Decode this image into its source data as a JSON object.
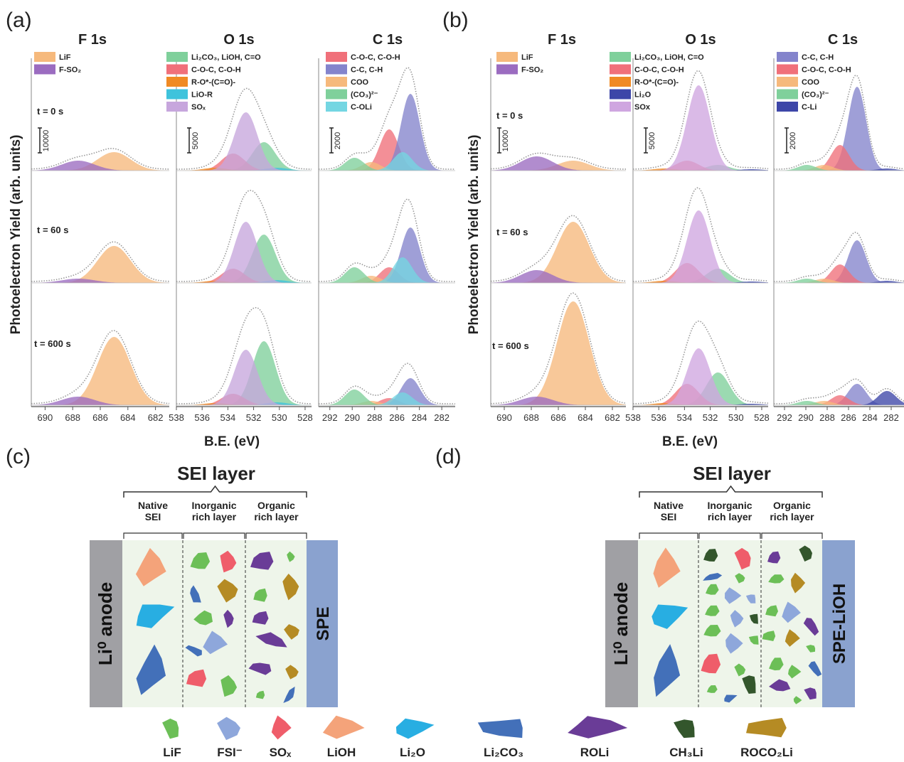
{
  "panel_letters": {
    "a": "(a)",
    "b": "(b)",
    "c": "(c)",
    "d": "(d)"
  },
  "y_label": "Photoelectron Yield (arb. units)",
  "x_label": "B.E. (eV)",
  "times": [
    "t = 0 s",
    "t = 60 s",
    "t = 600 s"
  ],
  "colors": {
    "LiF_xps": "#f6b97c",
    "FSO2": "#9b6cc0",
    "green": "#7fd09b",
    "pink": "#f0707a",
    "orange": "#f08a24",
    "cyan": "#3fc3dc",
    "lilac": "#c7a6dd",
    "blue": "#8484cc",
    "cyan2": "#74d6e2",
    "navy": "#3d46a8",
    "lipurple": "#cfa6e0",
    "envelope": "#999999",
    "panel_bg": "#eef5ea"
  },
  "chart_data": [
    {
      "type": "area",
      "panel": "(a)",
      "title": "F 1s",
      "legend": [
        "LiF",
        "F-SO₂"
      ],
      "x_ticks": [
        690,
        688,
        686,
        684,
        682
      ],
      "scale_bar": "10000",
      "xlim": [
        691,
        681
      ],
      "series": [
        {
          "name": "LiF",
          "center": 685.0,
          "amplitudes": [
            26,
            52,
            96
          ]
        },
        {
          "name": "F-SO₂",
          "center": 687.6,
          "amplitudes": [
            14,
            6,
            12
          ]
        }
      ]
    },
    {
      "type": "area",
      "panel": "(a)",
      "title": "O 1s",
      "legend": [
        "Li₂CO₃, LiOH, C=O",
        "C-O-C, C-O-H",
        "R-O*-(C=O)-",
        "LiO-R",
        "SOₓ"
      ],
      "x_ticks": [
        538,
        536,
        534,
        532,
        530,
        528
      ],
      "scale_bar": "5000",
      "xlim": [
        538,
        527.5
      ],
      "series": [
        {
          "name": "Li₂CO₃, LiOH, C=O",
          "center": 531.2,
          "amplitudes": [
            40,
            68,
            90
          ]
        },
        {
          "name": "C-O-C, C-O-H",
          "center": 533.6,
          "amplitudes": [
            24,
            20,
            16
          ]
        },
        {
          "name": "R-O*-(C=O)-",
          "center": 535.0,
          "amplitudes": [
            4,
            3,
            3
          ]
        },
        {
          "name": "LiO-R",
          "center": 530.2,
          "amplitudes": [
            4,
            4,
            4
          ]
        },
        {
          "name": "SOₓ",
          "center": 532.6,
          "amplitudes": [
            82,
            86,
            78
          ]
        }
      ]
    },
    {
      "type": "area",
      "panel": "(a)",
      "title": "C 1s",
      "legend": [
        "C-O-C, C-O-H",
        "C-C, C-H",
        "COO",
        "(CO₃)²⁻",
        "C-OLi"
      ],
      "x_ticks": [
        292,
        290,
        288,
        286,
        284,
        282
      ],
      "scale_bar": "2000",
      "xlim": [
        293,
        280.8
      ],
      "series": [
        {
          "name": "C-O-C, C-O-H",
          "center": 286.7,
          "amplitudes": [
            58,
            22,
            10
          ]
        },
        {
          "name": "C-C, C-H",
          "center": 284.8,
          "amplitudes": [
            108,
            78,
            38
          ]
        },
        {
          "name": "COO",
          "center": 288.3,
          "amplitudes": [
            12,
            10,
            6
          ]
        },
        {
          "name": "(CO₃)²⁻",
          "center": 289.8,
          "amplitudes": [
            18,
            22,
            22
          ]
        },
        {
          "name": "C-OLi",
          "center": 285.5,
          "amplitudes": [
            26,
            36,
            18
          ]
        }
      ]
    },
    {
      "type": "area",
      "panel": "(b)",
      "title": "F 1s",
      "legend": [
        "LiF",
        "F-SO₂"
      ],
      "x_ticks": [
        690,
        688,
        686,
        684,
        682
      ],
      "scale_bar": "10000",
      "xlim": [
        691,
        681
      ],
      "series": [
        {
          "name": "LiF",
          "center": 684.9,
          "amplitudes": [
            14,
            86,
            146
          ]
        },
        {
          "name": "F-SO₂",
          "center": 687.6,
          "amplitudes": [
            20,
            18,
            12
          ]
        }
      ]
    },
    {
      "type": "area",
      "panel": "(b)",
      "title": "O 1s",
      "legend": [
        "Li₂CO₃, LiOH, C=O",
        "C-O-C, C-O-H",
        "R-O*-(C=O)-",
        "Li₂O",
        "SOx"
      ],
      "x_ticks": [
        538,
        536,
        534,
        532,
        530,
        528
      ],
      "scale_bar": "5000",
      "xlim": [
        538,
        527.5
      ],
      "series": [
        {
          "name": "Li₂CO₃, LiOH, C=O",
          "center": 531.4,
          "amplitudes": [
            8,
            20,
            46
          ]
        },
        {
          "name": "C-O-C, C-O-H",
          "center": 533.8,
          "amplitudes": [
            14,
            28,
            30
          ]
        },
        {
          "name": "R-O*-(C=O)-",
          "center": 535.6,
          "amplitudes": [
            3,
            3,
            3
          ]
        },
        {
          "name": "Li₂O",
          "center": 528.8,
          "amplitudes": [
            2,
            2,
            2
          ]
        },
        {
          "name": "SOx",
          "center": 532.9,
          "amplitudes": [
            120,
            102,
            80
          ]
        }
      ]
    },
    {
      "type": "area",
      "panel": "(b)",
      "title": "C 1s",
      "legend": [
        "C-C, C-H",
        "C-O-C, C-O-H",
        "COO",
        "(CO₃)²⁻",
        "C-Li"
      ],
      "x_ticks": [
        292,
        290,
        288,
        286,
        284,
        282
      ],
      "scale_bar": "2000",
      "xlim": [
        293,
        280.8
      ],
      "series": [
        {
          "name": "C-C, C-H",
          "center": 285.2,
          "amplitudes": [
            118,
            60,
            30
          ]
        },
        {
          "name": "C-O-C, C-O-H",
          "center": 286.8,
          "amplitudes": [
            36,
            26,
            14
          ]
        },
        {
          "name": "COO",
          "center": 288.3,
          "amplitudes": [
            8,
            6,
            6
          ]
        },
        {
          "name": "(CO₃)²⁻",
          "center": 289.9,
          "amplitudes": [
            8,
            6,
            6
          ]
        },
        {
          "name": "C-Li",
          "center": 282.4,
          "amplitudes": [
            3,
            3,
            20
          ]
        }
      ]
    }
  ],
  "schematic": {
    "sei_title": "SEI layer",
    "sections": [
      [
        "Native",
        "SEI"
      ],
      [
        "Inorganic",
        "rich layer"
      ],
      [
        "Organic",
        "rich layer"
      ]
    ],
    "anode_label": "Li⁰ anode",
    "right_c": "SPE",
    "right_d": "SPE-LiOH"
  },
  "legend_particles": [
    {
      "label": "LiF",
      "color": "#6cbf57"
    },
    {
      "label": "FSI⁻",
      "color": "#8ea7db"
    },
    {
      "label": "SOₓ",
      "color": "#ef5d6a"
    },
    {
      "label": "LiOH",
      "color": "#f4a37a"
    },
    {
      "label": "Li₂O",
      "color": "#28aee2"
    },
    {
      "label": "Li₂CO₃",
      "color": "#4370b9"
    },
    {
      "label": "ROLi",
      "color": "#6a3c97"
    },
    {
      "label": "CH₃Li",
      "color": "#33562c"
    },
    {
      "label": "ROCO₂Li",
      "color": "#b58b24"
    }
  ]
}
